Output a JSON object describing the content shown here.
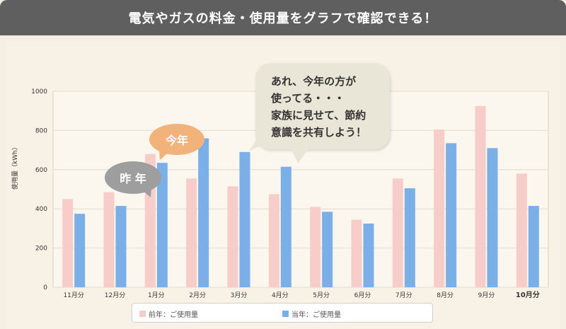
{
  "header": {
    "title": "電気やガスの料金・使用量をグラフで確認できる！"
  },
  "bubbles": {
    "comment": [
      "あれ、今年の方が",
      "使ってる・・・",
      "家族に見せて、節約",
      "意識を共有しよう！"
    ],
    "this_year": "今年",
    "last_year": "昨 年"
  },
  "colors": {
    "last_year": "#f6cdc8",
    "this_year": "#7aafe8"
  },
  "chart_data": {
    "type": "bar",
    "ylabel": "使用量（kWh）",
    "ylim": [
      0,
      1000
    ],
    "yticks": [
      0,
      200,
      400,
      600,
      800,
      1000
    ],
    "categories": [
      "11月分",
      "12月分",
      "1月分",
      "2月分",
      "3月分",
      "4月分",
      "5月分",
      "6月分",
      "7月分",
      "8月分",
      "9月分",
      "10月分"
    ],
    "highlight_category": "10月分",
    "series": [
      {
        "name": "前年：ご使用量",
        "values": [
          450,
          485,
          680,
          555,
          515,
          475,
          410,
          345,
          555,
          805,
          925,
          580
        ]
      },
      {
        "name": "当年：ご使用量",
        "values": [
          375,
          415,
          635,
          760,
          690,
          615,
          385,
          325,
          505,
          735,
          710,
          415
        ]
      }
    ],
    "legend": "bottom"
  }
}
